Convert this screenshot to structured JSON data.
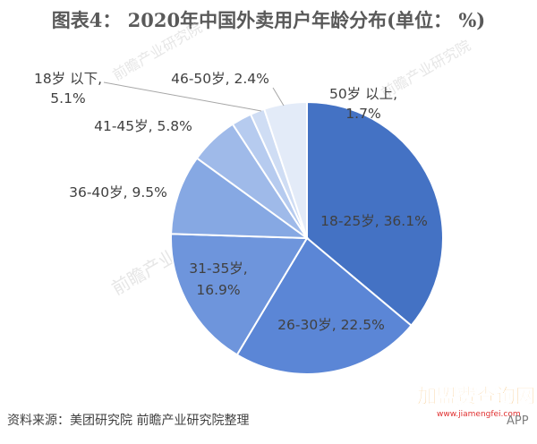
{
  "chart_data": {
    "type": "pie",
    "title": "图表4： 2020年中国外卖用户年龄分布(单位： %)",
    "slices": [
      {
        "label": "18-25岁",
        "value": 36.1,
        "display": "18-25岁, 36.1%",
        "color": "#4472C4"
      },
      {
        "label": "26-30岁",
        "value": 22.5,
        "display": "26-30岁, 22.5%",
        "color": "#5B86D6"
      },
      {
        "label": "31-35岁",
        "value": 16.9,
        "display_lines": [
          "31-35岁,",
          "16.9%"
        ],
        "color": "#6E95DC"
      },
      {
        "label": "36-40岁",
        "value": 9.5,
        "display": "36-40岁, 9.5%",
        "color": "#86A8E3"
      },
      {
        "label": "41-45岁",
        "value": 5.8,
        "display": "41-45岁, 5.8%",
        "color": "#9FBAE9"
      },
      {
        "label": "46-50岁",
        "value": 2.4,
        "display": "46-50岁, 2.4%",
        "color": "#B6CBEF"
      },
      {
        "label": "50岁以上",
        "value": 1.7,
        "display_lines": [
          "50岁 以上,",
          "1.7%"
        ],
        "color": "#CFDDF4"
      },
      {
        "label": "18岁以下",
        "value": 5.1,
        "display_lines": [
          "18岁 以下,",
          "5.1%"
        ],
        "color": "#E3EBF8"
      }
    ],
    "legend": "none",
    "data_labels": true
  },
  "source": "资料来源：美团研究院 前瞻产业研究院整理",
  "watermarks": {
    "main": "前瞻产业研究院",
    "logo": "加盟费查询网",
    "logo_url": "www.jiamengfei.com",
    "app": "APP"
  },
  "colors": {
    "slice_stroke": "#ffffff",
    "leader_line": "#a6a6a6"
  }
}
